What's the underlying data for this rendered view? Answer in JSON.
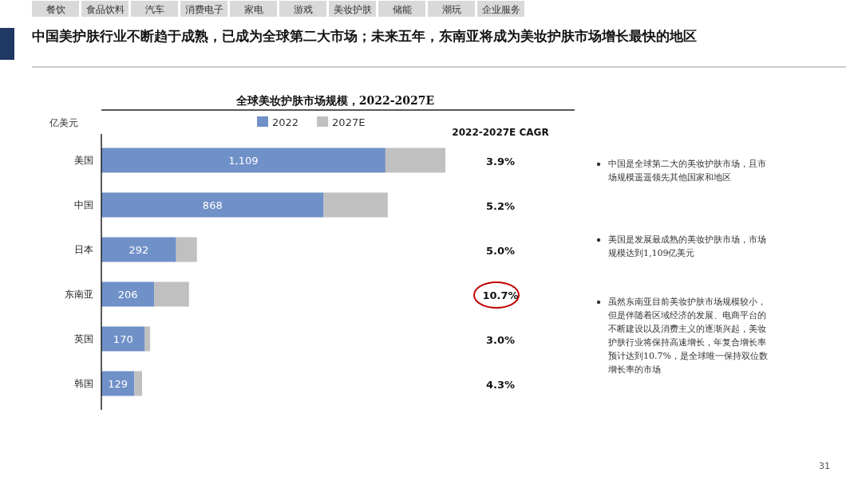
{
  "chart_data": {
    "type": "bar",
    "orientation": "horizontal",
    "stacked": true,
    "legend": "top",
    "title": "中国美护肤行业不断趋于成熟，已成为全球第二大市场；未来五年，东南亚将成为美妆护肤市场增长最快的地区",
    "subtitle": "全球美妆护肤市场规模，2022-2027E",
    "categories": [
      "美国",
      "中国",
      "日本",
      "东南亚",
      "英国",
      "韩国"
    ],
    "series": [
      {
        "name": "2022",
        "color": "#7090c8",
        "values": [
          1109,
          868,
          292,
          206,
          170,
          129
        ],
        "value_labels": [
          "1,109",
          "868",
          "292",
          "206",
          "170",
          "129"
        ]
      },
      {
        "name": "2027E",
        "color": "#c0c0c0",
        "values": [
          234,
          250,
          81,
          136,
          20,
          30
        ]
      }
    ],
    "annotations": [
      "餐饮",
      "食品饮料",
      "汽车",
      "消费电子",
      "家电",
      "游戏",
      "美妆护肤",
      "储能",
      "潮玩",
      "企业服务",
      "亿美元",
      "2022-2027E CAGR",
      "3.9%",
      "5.2%",
      "5.0%",
      "10.7%",
      "3.0%",
      "4.3%",
      "中国是全球第二大的美妆护肤市场，且市场规模遥遥领先其他国家和地区",
      "美国是发展最成熟的美妆护肤市场，市场规模达到1,109亿美元",
      "虽然东南亚目前美妆护肤市场规模较小，但是伴随着区域经济的发展、电商平台的不断建设以及消费主义的逐渐兴起，美妆护肤行业将保持高速增长，年复合增长率预计达到10.7%，是全球唯一保持双位数增长率的市场",
      "31"
    ]
  }
}
